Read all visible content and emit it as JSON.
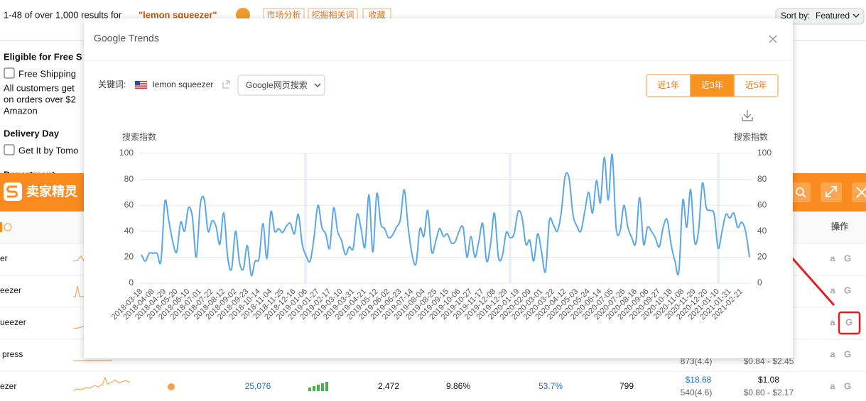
{
  "page": {
    "results_prefix": "1-48 of over 1,000 results for",
    "query": "\"lemon squeezer\"",
    "toolbar": [
      "市场分析",
      "挖掘相关词",
      "收藏"
    ],
    "sort_label": "Sort by:",
    "sort_value": "Featured"
  },
  "sidebar": {
    "shipping_heading": "Eligible for Free S",
    "shipping_option": "Free Shipping",
    "shipping_note": [
      "All customers get",
      "on orders over $2",
      "Amazon"
    ],
    "delivery_heading": "Delivery Day",
    "delivery_option": "Get It by Tomo",
    "department_heading": "Department"
  },
  "plugin": {
    "brand": "卖家精灵",
    "actions_header": "操作",
    "icons": {
      "amazon": "a",
      "google": "G"
    },
    "rows": [
      {
        "keyword": "er"
      },
      {
        "keyword": "eezer"
      },
      {
        "keyword": "ueezer"
      },
      {
        "keyword": "press",
        "reviews": "873(4.4)",
        "price_range": "$0.84 - $2.45"
      },
      {
        "keyword": "ezer",
        "search_volume": "25,076",
        "products": "2,472",
        "ratio": "9.86%",
        "share": "53.7%",
        "count": "799",
        "price": "$18.68",
        "reviews": "540(4.6)",
        "fee": "$1.08",
        "price_range": "$0.80 - $2.17"
      }
    ]
  },
  "modal": {
    "title": "Google Trends",
    "keyword_label": "关键词:",
    "keyword": "lemon squeezer",
    "search_type": "Google网页搜索",
    "ranges": [
      "近1年",
      "近3年",
      "近5年"
    ],
    "active_range": 1
  },
  "chart_data": {
    "type": "line",
    "y_label": "搜索指数",
    "color": "#5aa8ea",
    "grid": true,
    "ylim": [
      0,
      100
    ],
    "yticks": [
      0,
      20,
      40,
      60,
      80,
      100
    ],
    "categories": [
      "2018-03-18",
      null,
      null,
      "2018-04-08",
      null,
      null,
      "2018-04-29",
      null,
      null,
      "2018-05-20",
      null,
      null,
      "2018-06-10",
      null,
      null,
      "2018-07-01",
      null,
      null,
      "2018-07-22",
      null,
      null,
      "2018-08-12",
      null,
      null,
      "2018-09-02",
      null,
      null,
      "2018-09-23",
      null,
      null,
      "2018-10-14",
      null,
      null,
      "2018-11-04",
      null,
      null,
      "2018-11-25",
      null,
      null,
      "2018-12-16",
      null,
      null,
      "2019-01-06",
      null,
      null,
      "2019-01-27",
      null,
      null,
      "2019-02-17",
      null,
      null,
      "2019-03-10",
      null,
      null,
      "2019-03-31",
      null,
      null,
      "2019-04-21",
      null,
      null,
      "2019-05-12",
      null,
      null,
      "2019-06-02",
      null,
      null,
      "2019-06-23",
      null,
      null,
      "2019-07-14",
      null,
      null,
      "2019-08-04",
      null,
      null,
      "2019-08-25",
      null,
      null,
      "2019-09-15",
      null,
      null,
      "2019-10-06",
      null,
      null,
      "2019-10-27",
      null,
      null,
      "2019-11-17",
      null,
      null,
      "2019-12-08",
      null,
      null,
      "2019-12-29",
      null,
      null,
      "2020-01-19",
      null,
      null,
      "2020-02-09",
      null,
      null,
      "2020-03-01",
      null,
      null,
      "2020-03-22",
      null,
      null,
      "2020-04-12",
      null,
      null,
      "2020-05-03",
      null,
      null,
      "2020-05-24",
      null,
      null,
      "2020-06-14",
      null,
      null,
      "2020-07-05",
      null,
      null,
      "2020-07-26",
      null,
      null,
      "2020-08-16",
      null,
      null,
      "2020-09-06",
      null,
      null,
      "2020-09-27",
      null,
      null,
      "2020-10-18",
      null,
      null,
      "2020-11-08",
      null,
      null,
      "2020-11-29",
      null,
      null,
      "2020-12-20",
      null,
      null,
      "2021-01-10",
      null,
      null,
      "2021-01-31",
      null,
      null,
      "2021-02-21",
      null,
      null
    ],
    "values": [
      22,
      17,
      23,
      23,
      23,
      17,
      63,
      48,
      32,
      24,
      47,
      40,
      58,
      51,
      20,
      60,
      65,
      40,
      48,
      44,
      30,
      54,
      20,
      11,
      40,
      16,
      11,
      29,
      6,
      17,
      19,
      46,
      19,
      55,
      40,
      42,
      39,
      44,
      46,
      38,
      53,
      30,
      21,
      17,
      35,
      60,
      43,
      38,
      27,
      58,
      40,
      33,
      22,
      28,
      27,
      53,
      42,
      28,
      68,
      24,
      69,
      46,
      42,
      35,
      37,
      43,
      49,
      72,
      43,
      22,
      15,
      42,
      36,
      56,
      24,
      32,
      42,
      36,
      38,
      31,
      32,
      40,
      43,
      20,
      36,
      20,
      32,
      46,
      17,
      30,
      54,
      20,
      21,
      39,
      35,
      38,
      55,
      51,
      30,
      33,
      17,
      38,
      24,
      9,
      48,
      45,
      40,
      54,
      82,
      81,
      53,
      44,
      40,
      55,
      70,
      54,
      79,
      62,
      97,
      64,
      99,
      43,
      40,
      60,
      43,
      35,
      31,
      66,
      30,
      43,
      40,
      35,
      28,
      43,
      49,
      30,
      17,
      9,
      64,
      43,
      72,
      32,
      40,
      77,
      58,
      56,
      53,
      27,
      40,
      53,
      50,
      54,
      43,
      47,
      40,
      20
    ]
  }
}
